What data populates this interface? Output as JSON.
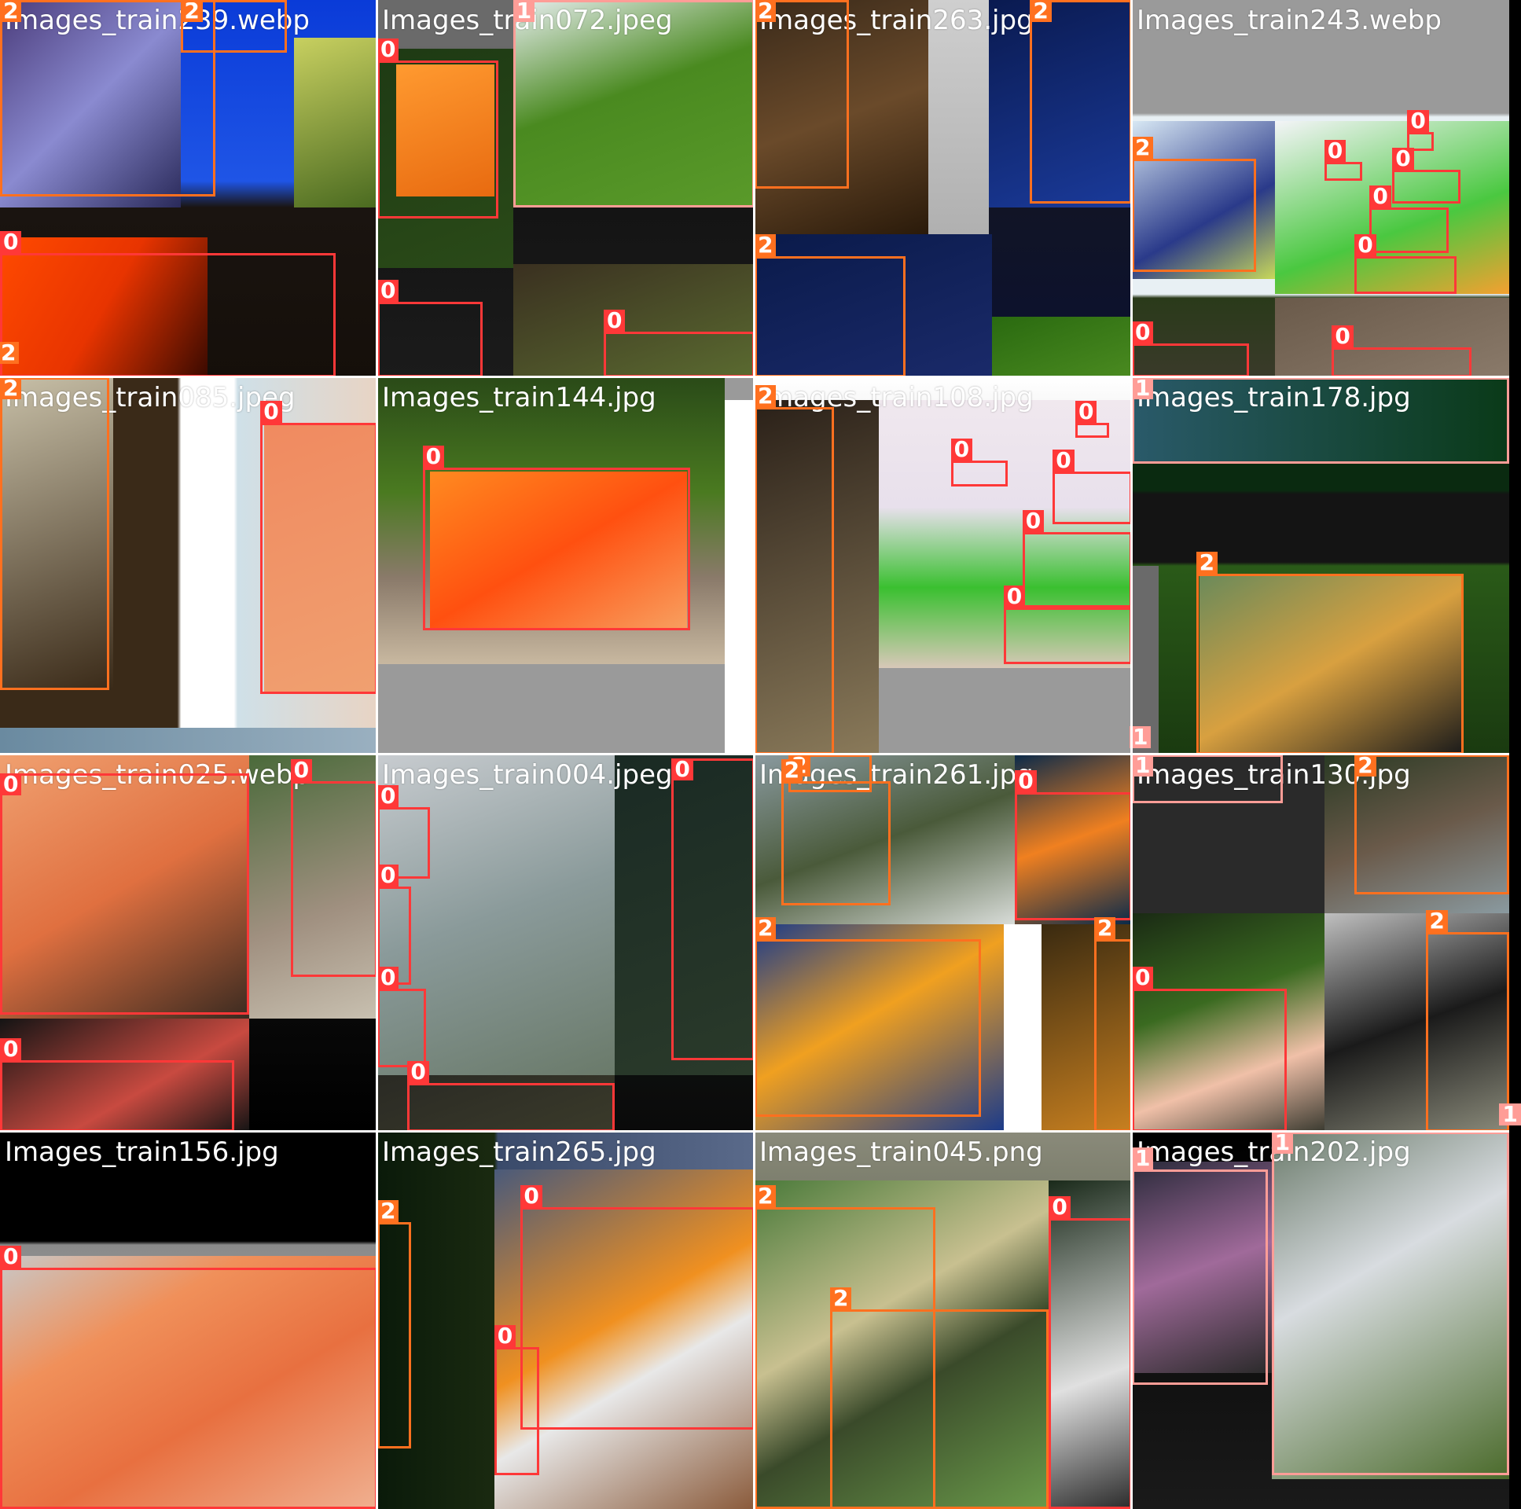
{
  "class_colors": {
    "0": "#ff3838",
    "1": "#ff9d97",
    "2": "#ff701f"
  },
  "tiles": [
    {
      "filename": "Images_train239.webp",
      "bg": "linear-gradient(180deg,#0a3bd8 0%,#1f55e6 48%,#1a1410 55%,#150f0a 100%)",
      "blocks": [
        {
          "l": 0,
          "t": 0,
          "w": 0.48,
          "h": 0.55,
          "c": "linear-gradient(135deg,#4a3b7a,#8a8ad0,#2a2a5a)"
        },
        {
          "l": 0.78,
          "t": 0.1,
          "w": 0.22,
          "h": 0.45,
          "c": "linear-gradient(160deg,#c8d060,#4a6a20)"
        },
        {
          "l": 0,
          "t": 0.63,
          "w": 0.55,
          "h": 0.37,
          "c": "linear-gradient(120deg,#ff4a00,#e83400,#3a0a00)"
        }
      ],
      "boxes": [
        {
          "cls": "2",
          "l": 0.48,
          "t": 0.0,
          "w": 0.28,
          "h": 0.14
        },
        {
          "cls": "2",
          "l": 0.0,
          "t": 0.0,
          "w": 0.57,
          "h": 0.52
        },
        {
          "cls": "0",
          "l": 0.0,
          "t": 0.67,
          "w": 0.89,
          "h": 0.33
        },
        {
          "cls": "2",
          "l": 0.0,
          "t": 0.97,
          "w": 0.0,
          "h": 0.0
        }
      ]
    },
    {
      "filename": "Images_train072.jpeg",
      "bg": "linear-gradient(180deg,#6a6a6a 0%,#6a6a6a 12%,#141414 55%,#1b1b1b 100%)",
      "blocks": [
        {
          "l": 0.36,
          "t": 0,
          "w": 0.64,
          "h": 0.55,
          "c": "linear-gradient(160deg,#e8eef0,#4a8a20 45%,#5a9a2a)"
        },
        {
          "l": 0,
          "t": 0.13,
          "w": 0.36,
          "h": 0.58,
          "c": "linear-gradient(160deg,#1e3a14,#2a4a18)"
        },
        {
          "l": 0.05,
          "t": 0.17,
          "w": 0.26,
          "h": 0.35,
          "c": "linear-gradient(160deg,#ff9a30,#e86a10)"
        },
        {
          "l": 0.36,
          "t": 0.7,
          "w": 0.64,
          "h": 0.3,
          "c": "linear-gradient(160deg,#3a3020,#5a6a30)"
        }
      ],
      "boxes": [
        {
          "cls": "1",
          "l": 0.36,
          "t": 0.0,
          "w": 0.64,
          "h": 0.55
        },
        {
          "cls": "0",
          "l": 0.0,
          "t": 0.16,
          "w": 0.32,
          "h": 0.42
        },
        {
          "cls": "0",
          "l": 0.0,
          "t": 0.8,
          "w": 0.28,
          "h": 0.2
        },
        {
          "cls": "0",
          "l": 0.6,
          "t": 0.88,
          "w": 0.4,
          "h": 0.12
        }
      ]
    },
    {
      "filename": "Images_train263.jpg",
      "bg": "linear-gradient(180deg,#1a1a1a,#0a1030)",
      "blocks": [
        {
          "l": 0,
          "t": 0,
          "w": 0.46,
          "h": 0.62,
          "c": "linear-gradient(160deg,#3a2a1a,#6a4a2a,#2a1a0a)"
        },
        {
          "l": 0.46,
          "t": 0,
          "w": 0.16,
          "h": 0.62,
          "c": "linear-gradient(180deg,#cfcfcf,#b0b0b0)"
        },
        {
          "l": 0.62,
          "t": 0,
          "w": 0.38,
          "h": 0.55,
          "c": "linear-gradient(160deg,#0a1a50,#1a3a9a)"
        },
        {
          "l": 0,
          "t": 0.62,
          "w": 0.63,
          "h": 0.38,
          "c": "linear-gradient(160deg,#0a1a4a,#1a2a6a)"
        },
        {
          "l": 0.63,
          "t": 0.84,
          "w": 0.37,
          "h": 0.16,
          "c": "linear-gradient(160deg,#2a6a10,#4a8a20)"
        }
      ],
      "boxes": [
        {
          "cls": "2",
          "l": 0.0,
          "t": 0.0,
          "w": 0.25,
          "h": 0.5
        },
        {
          "cls": "2",
          "l": 0.73,
          "t": 0.0,
          "w": 0.27,
          "h": 0.54
        },
        {
          "cls": "2",
          "l": 0.0,
          "t": 0.68,
          "w": 0.4,
          "h": 0.32
        }
      ]
    },
    {
      "filename": "Images_train243.webp",
      "bg": "linear-gradient(180deg,#9a9a9a 0%,#9a9a9a 30%,#e8f0f4 31%,#e8f0f4 78%,#2a3a1a 79%,#3a3a2a 100%)",
      "blocks": [
        {
          "l": 0,
          "t": 0.32,
          "w": 0.38,
          "h": 0.42,
          "c": "linear-gradient(150deg,#d8e8f4,#2a3a8a 60%,#c8d85a)"
        },
        {
          "l": 0.38,
          "t": 0.32,
          "w": 0.62,
          "h": 0.46,
          "c": "linear-gradient(160deg,#f4f4f8,#4ac840 60%,#f4a030)"
        },
        {
          "l": 0.38,
          "t": 0.79,
          "w": 0.62,
          "h": 0.21,
          "c": "linear-gradient(160deg,#6a5a4a,#8a7a6a)"
        }
      ],
      "boxes": [
        {
          "cls": "2",
          "l": 0.0,
          "t": 0.42,
          "w": 0.33,
          "h": 0.3
        },
        {
          "cls": "0",
          "l": 0.73,
          "t": 0.35,
          "w": 0.07,
          "h": 0.05
        },
        {
          "cls": "0",
          "l": 0.51,
          "t": 0.43,
          "w": 0.1,
          "h": 0.05
        },
        {
          "cls": "0",
          "l": 0.69,
          "t": 0.45,
          "w": 0.18,
          "h": 0.09
        },
        {
          "cls": "0",
          "l": 0.63,
          "t": 0.55,
          "w": 0.21,
          "h": 0.12
        },
        {
          "cls": "0",
          "l": 0.59,
          "t": 0.68,
          "w": 0.27,
          "h": 0.1
        },
        {
          "cls": "0",
          "l": 0.53,
          "t": 0.92,
          "w": 0.37,
          "h": 0.08
        },
        {
          "cls": "0",
          "l": 0.0,
          "t": 0.91,
          "w": 0.31,
          "h": 0.09
        }
      ]
    },
    {
      "filename": "Images_train085.jpeg",
      "bg": "linear-gradient(90deg,#3a2a18 0%,#3a2a18 47%,#fff 48%,#fff 62%,#cfe0e8 63%,#e8d4c4 100%)",
      "blocks": [
        {
          "l": 0,
          "t": 0,
          "w": 0.3,
          "h": 0.83,
          "c": "linear-gradient(160deg,#c8c0a8,#3a2a18)"
        },
        {
          "l": 0.7,
          "t": 0.12,
          "w": 0.3,
          "h": 0.72,
          "c": "linear-gradient(160deg,#f08a60,#f0a070)"
        },
        {
          "l": 0,
          "t": 0.93,
          "w": 1,
          "h": 0.07,
          "c": "linear-gradient(90deg,#6a8aa0,#9ab0c0)"
        }
      ],
      "boxes": [
        {
          "cls": "2",
          "l": 0.0,
          "t": 0.0,
          "w": 0.29,
          "h": 0.83
        },
        {
          "cls": "0",
          "l": 0.69,
          "t": 0.12,
          "w": 0.31,
          "h": 0.72
        }
      ]
    },
    {
      "filename": "Images_train144.jpg",
      "bg": "linear-gradient(180deg,#9a9a9a 0%,#9a9a9a 100%)",
      "blocks": [
        {
          "l": 0,
          "t": 0,
          "w": 0.92,
          "h": 0.76,
          "c": "linear-gradient(180deg,#2a4a18 0%,#4a7a20 40%,#8a7a6a 70%,#c8b8a0 100%)"
        },
        {
          "l": 0.14,
          "t": 0.25,
          "w": 0.68,
          "h": 0.42,
          "c": "linear-gradient(150deg,#ff8a20,#ff5010 50%,#f8a060)"
        },
        {
          "l": 0.92,
          "t": 0.06,
          "w": 0.08,
          "h": 0.94,
          "c": "#fff"
        }
      ],
      "boxes": [
        {
          "cls": "0",
          "l": 0.12,
          "t": 0.24,
          "w": 0.71,
          "h": 0.43
        }
      ]
    },
    {
      "filename": "Images_train108.jpg",
      "bg": "linear-gradient(180deg,#fff,#9a9a9a)",
      "blocks": [
        {
          "l": 0,
          "t": 0.06,
          "w": 0.33,
          "h": 0.94,
          "c": "linear-gradient(160deg,#2a2018,#8a7a5a)"
        },
        {
          "l": 0.33,
          "t": 0.06,
          "w": 0.67,
          "h": 0.71,
          "c": "linear-gradient(180deg,#f0e8ee 0%,#e8e0ec 40%,#3ac030 70%,#d8c8b8 100%)"
        },
        {
          "l": 0.33,
          "t": 0.77,
          "w": 0.67,
          "h": 0.23,
          "c": "#9a9a9a"
        }
      ],
      "boxes": [
        {
          "cls": "2",
          "l": 0.0,
          "t": 0.08,
          "w": 0.21,
          "h": 0.92
        },
        {
          "cls": "0",
          "l": 0.85,
          "t": 0.12,
          "w": 0.09,
          "h": 0.04
        },
        {
          "cls": "0",
          "l": 0.52,
          "t": 0.22,
          "w": 0.15,
          "h": 0.07
        },
        {
          "cls": "0",
          "l": 0.79,
          "t": 0.25,
          "w": 0.21,
          "h": 0.14
        },
        {
          "cls": "0",
          "l": 0.71,
          "t": 0.41,
          "w": 0.29,
          "h": 0.2
        },
        {
          "cls": "0",
          "l": 0.66,
          "t": 0.61,
          "w": 0.34,
          "h": 0.15
        }
      ]
    },
    {
      "filename": "Images_train178.jpg",
      "bg": "linear-gradient(180deg,#0a2a10 0%,#0a2a10 30%,#141414 31%,#141414 49%,#2a5a18 50%,#1a3a10 100%)",
      "blocks": [
        {
          "l": 0,
          "t": 0,
          "w": 1,
          "h": 0.23,
          "c": "linear-gradient(90deg,#2a5a6a,#0a3a18)"
        },
        {
          "l": 0,
          "t": 0.5,
          "w": 0.07,
          "h": 0.5,
          "c": "#6a6a6a"
        },
        {
          "l": 0.18,
          "t": 0.52,
          "w": 0.7,
          "h": 0.48,
          "c": "linear-gradient(150deg,#6a8a5a,#d8a040 50%,#1a1a1a)"
        }
      ],
      "boxes": [
        {
          "cls": "1",
          "l": 0.0,
          "t": 0.0,
          "w": 1.0,
          "h": 0.23
        },
        {
          "cls": "2",
          "l": 0.17,
          "t": 0.52,
          "w": 0.71,
          "h": 0.48
        },
        {
          "cls": "1",
          "l": 0.0,
          "t": 0.99,
          "w": 0.0,
          "h": 0.0
        }
      ]
    },
    {
      "filename": "Images_train025.webp",
      "bg": "linear-gradient(180deg,#1a1a1a,#000)",
      "blocks": [
        {
          "l": 0,
          "t": 0,
          "w": 0.66,
          "h": 0.7,
          "c": "linear-gradient(150deg,#f0a070,#e07040 50%,#3a2a20)"
        },
        {
          "l": 0.66,
          "t": 0,
          "w": 0.34,
          "h": 0.7,
          "c": "linear-gradient(160deg,#4a6a3a,#a09080 60%,#c8c0b0)"
        },
        {
          "l": 0,
          "t": 0.7,
          "w": 0.66,
          "h": 0.3,
          "c": "linear-gradient(150deg,#141414,#c84a40 60%,#141414)"
        }
      ],
      "boxes": [
        {
          "cls": "0",
          "l": 0.0,
          "t": 0.05,
          "w": 0.66,
          "h": 0.64
        },
        {
          "cls": "0",
          "l": 0.77,
          "t": 0.07,
          "w": 0.23,
          "h": 0.52
        },
        {
          "cls": "0",
          "l": 0.0,
          "t": 0.81,
          "w": 0.62,
          "h": 0.19
        }
      ]
    },
    {
      "filename": "Images_train004.jpeg",
      "bg": "linear-gradient(180deg,#1a2420,#0a0a0a)",
      "blocks": [
        {
          "l": 0,
          "t": 0,
          "w": 0.63,
          "h": 0.85,
          "c": "linear-gradient(160deg,#c8ccd0,#8a9a9a 50%,#6a7a6a)"
        },
        {
          "l": 0.63,
          "t": 0,
          "w": 0.37,
          "h": 0.85,
          "c": "linear-gradient(160deg,#1a2a24,#2a3a2a)"
        },
        {
          "l": 0,
          "t": 0.85,
          "w": 0.63,
          "h": 0.15,
          "c": "linear-gradient(160deg,#2a2a24,#3a3a2a)"
        }
      ],
      "boxes": [
        {
          "cls": "0",
          "l": 0.78,
          "t": 0.01,
          "w": 0.22,
          "h": 0.8
        },
        {
          "cls": "0",
          "l": 0.0,
          "t": 0.14,
          "w": 0.14,
          "h": 0.19
        },
        {
          "cls": "0",
          "l": 0.0,
          "t": 0.35,
          "w": 0.09,
          "h": 0.26
        },
        {
          "cls": "0",
          "l": 0.0,
          "t": 0.62,
          "w": 0.13,
          "h": 0.21
        },
        {
          "cls": "0",
          "l": 0.08,
          "t": 0.87,
          "w": 0.55,
          "h": 0.13
        }
      ]
    },
    {
      "filename": "Images_train261.jpg",
      "bg": "linear-gradient(180deg,#2a2a2a,#1a1a1a)",
      "blocks": [
        {
          "l": 0,
          "t": 0,
          "w": 0.69,
          "h": 0.45,
          "c": "linear-gradient(160deg,#8a9aa0,#4a5a3a 50%,#d8dcd8)"
        },
        {
          "l": 0.69,
          "t": 0,
          "w": 0.31,
          "h": 0.45,
          "c": "linear-gradient(160deg,#0a2a4a,#f08020 50%,#0a2a4a)"
        },
        {
          "l": 0,
          "t": 0.45,
          "w": 0.66,
          "h": 0.55,
          "c": "linear-gradient(150deg,#1a3a8a,#f0a020 45%,#1a3a8a)"
        },
        {
          "l": 0.66,
          "t": 0.45,
          "w": 0.1,
          "h": 0.55,
          "c": "#fff"
        },
        {
          "l": 0.76,
          "t": 0.45,
          "w": 0.24,
          "h": 0.55,
          "c": "linear-gradient(160deg,#3a2a10,#c88020)"
        }
      ],
      "boxes": [
        {
          "cls": "2",
          "l": 0.09,
          "t": 0.0,
          "w": 0.22,
          "h": 0.1
        },
        {
          "cls": "2",
          "l": 0.07,
          "t": 0.07,
          "w": 0.29,
          "h": 0.33
        },
        {
          "cls": "0",
          "l": 0.69,
          "t": 0.1,
          "w": 0.31,
          "h": 0.34
        },
        {
          "cls": "2",
          "l": 0.0,
          "t": 0.49,
          "w": 0.6,
          "h": 0.47
        },
        {
          "cls": "2",
          "l": 0.9,
          "t": 0.49,
          "w": 0.1,
          "h": 0.51
        }
      ]
    },
    {
      "filename": "Images_train130.jpg",
      "bg": "linear-gradient(180deg,#2a2a2a,#0a0a0a)",
      "blocks": [
        {
          "l": 0,
          "t": 0,
          "w": 0.51,
          "h": 0.42,
          "c": "#2a2a2a"
        },
        {
          "l": 0.51,
          "t": 0,
          "w": 0.49,
          "h": 0.42,
          "c": "linear-gradient(160deg,#2a3a24,#6a5a4a,#8a9aa0)"
        },
        {
          "l": 0,
          "t": 0.42,
          "w": 0.51,
          "h": 0.58,
          "c": "linear-gradient(160deg,#1a2a14,#3a6a20 40%,#f0c0a8 70%,#3a3a30)"
        },
        {
          "l": 0.51,
          "t": 0.42,
          "w": 0.49,
          "h": 0.58,
          "c": "linear-gradient(160deg,#c0c0c0,#1a1a1a 50%,#8a8a7a)"
        }
      ],
      "boxes": [
        {
          "cls": "1",
          "l": 0.0,
          "t": 0.0,
          "w": 0.4,
          "h": 0.13
        },
        {
          "cls": "2",
          "l": 0.59,
          "t": 0.0,
          "w": 0.41,
          "h": 0.37
        },
        {
          "cls": "0",
          "l": 0.0,
          "t": 0.62,
          "w": 0.41,
          "h": 0.38
        },
        {
          "cls": "2",
          "l": 0.78,
          "t": 0.47,
          "w": 0.22,
          "h": 0.53
        },
        {
          "cls": "1",
          "l": 0.98,
          "t": 0.99,
          "w": 0.0,
          "h": 0.0
        }
      ]
    },
    {
      "filename": "Images_train156.jpg",
      "bg": "linear-gradient(180deg,#000 0%,#000 29%,#8a8a8a 30%,#c0c0c0 100%)",
      "blocks": [
        {
          "l": 0,
          "t": 0.33,
          "w": 1,
          "h": 0.67,
          "c": "linear-gradient(150deg,#c8c8c8 0%,#f0905a 30%,#e87040 60%,#f0b090 100%)"
        }
      ],
      "boxes": [
        {
          "cls": "0",
          "l": 0.0,
          "t": 0.36,
          "w": 1.0,
          "h": 0.64
        }
      ]
    },
    {
      "filename": "Images_train265.jpg",
      "bg": "linear-gradient(90deg,#0a1a0a 0%,#1a2a10 31%,#3a4a6a 32%,#5a6a8a 100%)",
      "blocks": [
        {
          "l": 0.31,
          "t": 0.1,
          "w": 0.69,
          "h": 0.9,
          "c": "linear-gradient(150deg,#4a5a7a,#f09020 45%,#e8e8e8 60%,#8a5a3a)"
        }
      ],
      "boxes": [
        {
          "cls": "2",
          "l": 0.0,
          "t": 0.24,
          "w": 0.09,
          "h": 0.6
        },
        {
          "cls": "0",
          "l": 0.38,
          "t": 0.2,
          "w": 0.62,
          "h": 0.59
        },
        {
          "cls": "0",
          "l": 0.31,
          "t": 0.57,
          "w": 0.12,
          "h": 0.34
        }
      ]
    },
    {
      "filename": "Images_train045.png",
      "bg": "linear-gradient(180deg,#8a8a7a,#2a3a20)",
      "blocks": [
        {
          "l": 0,
          "t": 0.13,
          "w": 0.78,
          "h": 0.87,
          "c": "linear-gradient(150deg,#4a7a3a,#c8c090 40%,#3a4a2a 60%,#6a9a4a)"
        },
        {
          "l": 0.78,
          "t": 0.13,
          "w": 0.22,
          "h": 0.87,
          "c": "linear-gradient(160deg,#1a2a1a,#e0e0e0 60%,#2a2a2a)"
        }
      ],
      "boxes": [
        {
          "cls": "2",
          "l": 0.0,
          "t": 0.2,
          "w": 0.48,
          "h": 0.8
        },
        {
          "cls": "2",
          "l": 0.2,
          "t": 0.47,
          "w": 0.58,
          "h": 0.53
        },
        {
          "cls": "0",
          "l": 0.78,
          "t": 0.23,
          "w": 0.22,
          "h": 0.77
        }
      ]
    },
    {
      "filename": "Images_train202.jpg",
      "bg": "linear-gradient(180deg,#000,#1a1a1a)",
      "blocks": [
        {
          "l": 0,
          "t": 0.08,
          "w": 0.37,
          "h": 0.56,
          "c": "linear-gradient(160deg,#2a2a3a,#a06a9a 50%,#2a2a2a)"
        },
        {
          "l": 0.37,
          "t": 0,
          "w": 0.63,
          "h": 0.92,
          "c": "linear-gradient(150deg,#6a7a6a,#d8dce0 40%,#4a6a2a)"
        }
      ],
      "boxes": [
        {
          "cls": "1",
          "l": 0.0,
          "t": 0.1,
          "w": 0.36,
          "h": 0.57
        },
        {
          "cls": "1",
          "l": 0.37,
          "t": 0.0,
          "w": 0.63,
          "h": 0.91
        }
      ]
    }
  ]
}
